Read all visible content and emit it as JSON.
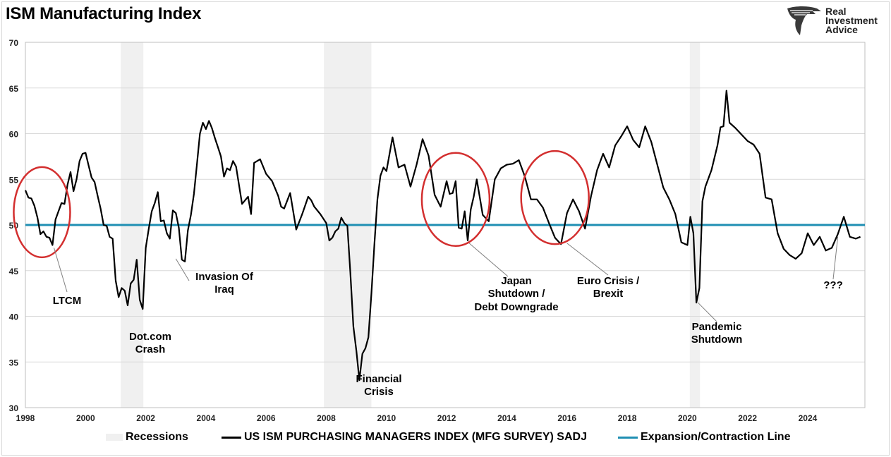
{
  "title": "ISM Manufacturing Index",
  "logo": {
    "line1": "Real",
    "line2": "Investment",
    "line3": "Advice",
    "icon": "eagle-head-icon"
  },
  "legend": {
    "recessions": "Recessions",
    "series": "US ISM PURCHASING MANAGERS INDEX (MFG SURVEY) SADJ",
    "line": "Expansion/Contraction Line"
  },
  "colors": {
    "series": "#000000",
    "expansion_line": "#1f8fb3",
    "recession": "#f0f0f0",
    "circle": "#d32f2f",
    "grid": "#d9d9d9"
  },
  "chart_data": {
    "type": "line",
    "xlim": [
      1998.0,
      2025.9
    ],
    "ylim": [
      30,
      70
    ],
    "yticks": [
      30,
      35,
      40,
      45,
      50,
      55,
      60,
      65,
      70
    ],
    "xticks": [
      1998,
      2000,
      2002,
      2004,
      2006,
      2008,
      2010,
      2012,
      2014,
      2016,
      2018,
      2020,
      2022,
      2024
    ],
    "grid": "horizontal",
    "legend_position": "bottom",
    "recessions": [
      [
        2001.17,
        2001.92
      ],
      [
        2007.92,
        2009.5
      ],
      [
        2020.08,
        2020.42
      ]
    ],
    "expansion_line": 50,
    "series": [
      {
        "name": "US ISM PURCHASING MANAGERS INDEX (MFG SURVEY) SADJ",
        "x": [
          1998.0,
          1998.1,
          1998.2,
          1998.3,
          1998.4,
          1998.5,
          1998.6,
          1998.7,
          1998.8,
          1998.9,
          1999.0,
          1999.1,
          1999.2,
          1999.3,
          1999.4,
          1999.5,
          1999.6,
          1999.7,
          1999.8,
          1999.9,
          2000.0,
          2000.1,
          2000.2,
          2000.3,
          2000.4,
          2000.5,
          2000.6,
          2000.7,
          2000.8,
          2000.9,
          2001.0,
          2001.1,
          2001.2,
          2001.3,
          2001.4,
          2001.5,
          2001.6,
          2001.7,
          2001.8,
          2001.9,
          2002.0,
          2002.1,
          2002.2,
          2002.3,
          2002.4,
          2002.5,
          2002.6,
          2002.7,
          2002.8,
          2002.9,
          2003.0,
          2003.1,
          2003.2,
          2003.3,
          2003.4,
          2003.5,
          2003.6,
          2003.7,
          2003.8,
          2003.9,
          2004.0,
          2004.1,
          2004.2,
          2004.3,
          2004.4,
          2004.5,
          2004.6,
          2004.7,
          2004.8,
          2004.9,
          2005.0,
          2005.2,
          2005.4,
          2005.5,
          2005.6,
          2005.8,
          2006.0,
          2006.2,
          2006.4,
          2006.5,
          2006.6,
          2006.8,
          2007.0,
          2007.2,
          2007.4,
          2007.5,
          2007.6,
          2007.8,
          2008.0,
          2008.1,
          2008.2,
          2008.3,
          2008.4,
          2008.5,
          2008.6,
          2008.7,
          2008.8,
          2008.9,
          2009.0,
          2009.1,
          2009.2,
          2009.3,
          2009.4,
          2009.5,
          2009.6,
          2009.7,
          2009.8,
          2009.9,
          2010.0,
          2010.2,
          2010.4,
          2010.6,
          2010.8,
          2011.0,
          2011.2,
          2011.4,
          2011.6,
          2011.8,
          2012.0,
          2012.1,
          2012.2,
          2012.3,
          2012.4,
          2012.5,
          2012.6,
          2012.7,
          2012.8,
          2012.9,
          2013.0,
          2013.2,
          2013.4,
          2013.6,
          2013.8,
          2014.0,
          2014.2,
          2014.4,
          2014.6,
          2014.8,
          2015.0,
          2015.2,
          2015.4,
          2015.6,
          2015.8,
          2016.0,
          2016.2,
          2016.4,
          2016.6,
          2016.8,
          2017.0,
          2017.2,
          2017.4,
          2017.6,
          2017.8,
          2018.0,
          2018.2,
          2018.4,
          2018.6,
          2018.8,
          2019.0,
          2019.2,
          2019.4,
          2019.6,
          2019.8,
          2020.0,
          2020.1,
          2020.2,
          2020.3,
          2020.4,
          2020.5,
          2020.6,
          2020.8,
          2021.0,
          2021.1,
          2021.2,
          2021.3,
          2021.4,
          2021.6,
          2021.8,
          2022.0,
          2022.2,
          2022.4,
          2022.6,
          2022.8,
          2023.0,
          2023.2,
          2023.4,
          2023.6,
          2023.8,
          2024.0,
          2024.2,
          2024.4,
          2024.6,
          2024.8,
          2025.0,
          2025.2,
          2025.4,
          2025.6,
          2025.75
        ],
        "values": [
          53.8,
          53.0,
          52.9,
          52.1,
          50.8,
          49.0,
          49.3,
          48.7,
          48.6,
          47.8,
          50.6,
          51.5,
          52.4,
          52.3,
          54.4,
          55.8,
          53.7,
          55.0,
          57.0,
          57.8,
          57.9,
          56.5,
          55.2,
          54.7,
          53.2,
          51.8,
          50.0,
          49.9,
          48.7,
          48.5,
          43.9,
          42.1,
          43.1,
          42.8,
          41.2,
          43.6,
          44.0,
          46.2,
          41.8,
          40.8,
          47.5,
          49.6,
          51.5,
          52.4,
          53.6,
          50.4,
          50.5,
          49.1,
          48.5,
          51.6,
          51.3,
          49.7,
          46.2,
          46.0,
          49.4,
          51.1,
          53.4,
          56.6,
          60.0,
          61.2,
          60.5,
          61.4,
          60.6,
          59.5,
          58.5,
          57.5,
          55.3,
          56.2,
          56.0,
          57.0,
          56.4,
          52.3,
          53.1,
          51.2,
          56.8,
          57.2,
          55.6,
          54.8,
          53.2,
          52.0,
          51.8,
          53.5,
          49.5,
          51.2,
          53.1,
          52.7,
          52.0,
          51.2,
          50.2,
          48.3,
          48.6,
          49.3,
          49.6,
          50.8,
          50.2,
          49.9,
          44.8,
          38.9,
          36.2,
          33.0,
          35.9,
          36.5,
          37.7,
          42.5,
          48.0,
          52.8,
          55.4,
          56.3,
          55.9,
          59.6,
          56.3,
          56.6,
          54.2,
          56.6,
          59.4,
          57.6,
          53.3,
          52.0,
          54.8,
          53.4,
          53.5,
          54.8,
          49.7,
          49.6,
          51.5,
          48.3,
          51.7,
          53.1,
          55.0,
          51.1,
          50.4,
          55.0,
          56.2,
          56.6,
          56.7,
          57.1,
          55.3,
          52.8,
          52.8,
          51.9,
          50.2,
          48.6,
          47.9,
          51.3,
          52.8,
          51.5,
          49.6,
          53.2,
          56.0,
          57.8,
          56.3,
          58.7,
          59.7,
          60.8,
          59.3,
          58.5,
          60.8,
          59.1,
          56.6,
          54.1,
          52.8,
          51.2,
          48.1,
          47.8,
          50.9,
          49.1,
          41.5,
          43.1,
          52.6,
          54.2,
          56.0,
          58.7,
          60.7,
          60.8,
          64.7,
          61.2,
          60.6,
          59.9,
          59.2,
          58.8,
          57.8,
          53.0,
          52.8,
          49.1,
          47.4,
          46.7,
          46.3,
          46.9,
          49.1,
          47.8,
          48.7,
          47.2,
          47.5,
          49.0,
          50.9,
          48.7,
          48.5,
          48.7
        ]
      }
    ],
    "annotations": [
      "LTCM",
      "Dot.com Crash",
      "Invasion Of Iraq",
      "Financial Crisis",
      "Japan Shutdown / Debt Downgrade",
      "Euro Crisis / Brexit",
      "Pandemic Shutdown",
      "???"
    ]
  },
  "annotations": {
    "ltcm": "LTCM",
    "dotcom_1": "Dot.com",
    "dotcom_2": "Crash",
    "iraq_1": "Invasion Of",
    "iraq_2": "Iraq",
    "fin_1": "Financial",
    "fin_2": "Crisis",
    "japan_1": "Japan",
    "japan_2": "Shutdown /",
    "japan_3": "Debt Downgrade",
    "euro_1": "Euro Crisis /",
    "euro_2": "Brexit",
    "pandemic_1": "Pandemic",
    "pandemic_2": "Shutdown",
    "q": "???"
  }
}
